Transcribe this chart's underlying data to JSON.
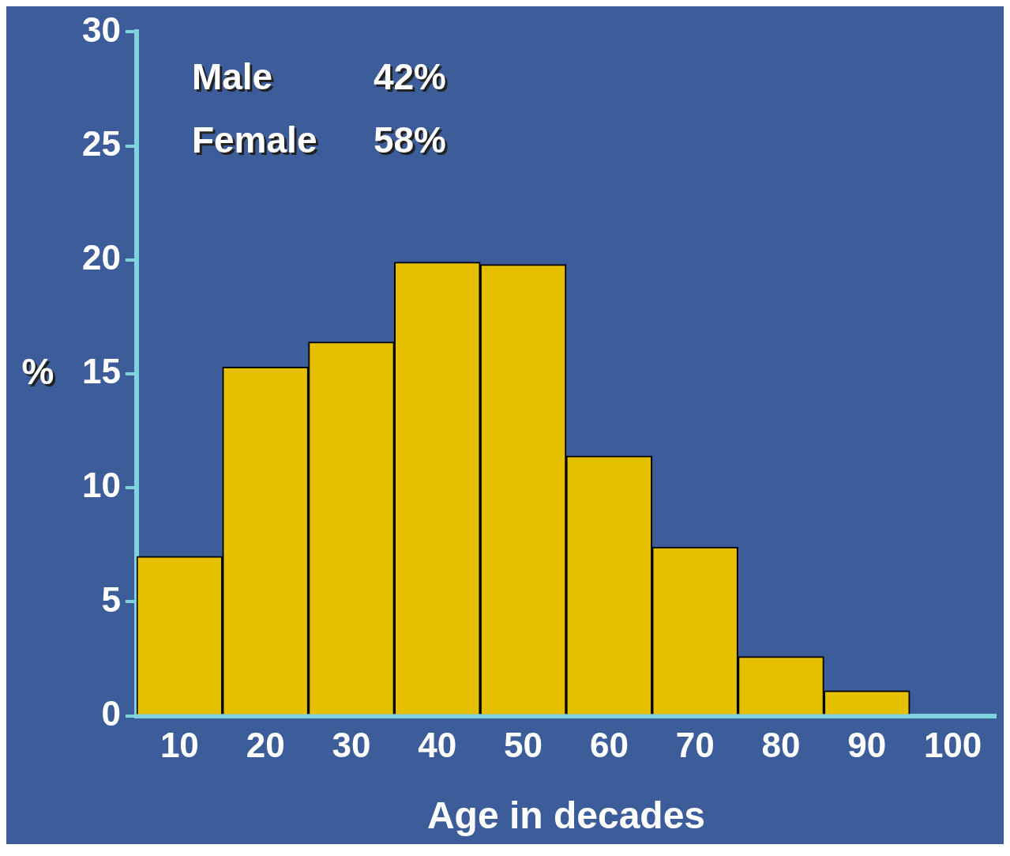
{
  "chart_data": {
    "type": "bar",
    "xlabel": "Age in decades",
    "ylabel": "%",
    "categories": [
      "10",
      "20",
      "30",
      "40",
      "50",
      "60",
      "70",
      "80",
      "90",
      "100"
    ],
    "values": [
      7.0,
      15.3,
      16.4,
      19.9,
      19.8,
      11.4,
      7.4,
      2.6,
      1.1,
      null
    ],
    "color": "#e6c000",
    "ylim": [
      0,
      30
    ],
    "yticks": [
      0,
      5,
      10,
      15,
      20,
      25,
      30
    ],
    "grid": false,
    "legend": false,
    "annotations": [
      "Male 42%",
      "Female 58%"
    ]
  }
}
